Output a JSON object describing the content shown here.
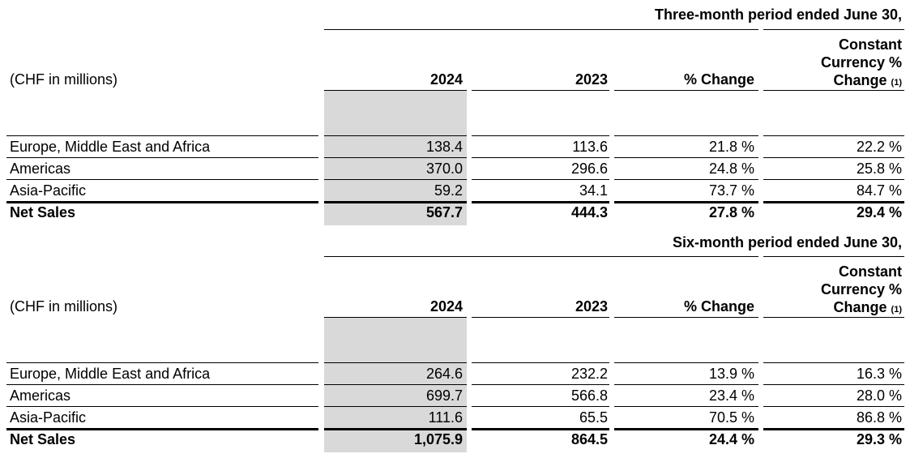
{
  "sections": [
    {
      "period": "Three-month period ended June 30,",
      "header": {
        "label": "(CHF in millions)",
        "col_2024": "2024",
        "col_2023": "2023",
        "col_change": "% Change",
        "col_ccy_line1": "Constant",
        "col_ccy_line2": "Currency %",
        "col_ccy_line3": "Change",
        "col_ccy_note": "(1)"
      },
      "rows": [
        {
          "label": "Europe, Middle East and Africa",
          "v2024": "138.4",
          "v2023": "113.6",
          "change": "21.8 %",
          "ccy": "22.2 %"
        },
        {
          "label": "Americas",
          "v2024": "370.0",
          "v2023": "296.6",
          "change": "24.8 %",
          "ccy": "25.8 %"
        },
        {
          "label": "Asia-Pacific",
          "v2024": "59.2",
          "v2023": "34.1",
          "change": "73.7 %",
          "ccy": "84.7 %"
        }
      ],
      "total": {
        "label": "Net Sales",
        "v2024": "567.7",
        "v2023": "444.3",
        "change": "27.8 %",
        "ccy": "29.4 %"
      }
    },
    {
      "period": "Six-month period ended June 30,",
      "header": {
        "label": "(CHF in millions)",
        "col_2024": "2024",
        "col_2023": "2023",
        "col_change": "% Change",
        "col_ccy_line1": "Constant",
        "col_ccy_line2": "Currency %",
        "col_ccy_line3": "Change",
        "col_ccy_note": "(1)"
      },
      "rows": [
        {
          "label": "Europe, Middle East and Africa",
          "v2024": "264.6",
          "v2023": "232.2",
          "change": "13.9 %",
          "ccy": "16.3 %"
        },
        {
          "label": "Americas",
          "v2024": "699.7",
          "v2023": "566.8",
          "change": "23.4 %",
          "ccy": "28.0 %"
        },
        {
          "label": "Asia-Pacific",
          "v2024": "111.6",
          "v2023": "65.5",
          "change": "70.5 %",
          "ccy": "86.8 %"
        }
      ],
      "total": {
        "label": "Net Sales",
        "v2024": "1,075.9",
        "v2023": "864.5",
        "change": "24.4 %",
        "ccy": "29.3 %"
      }
    }
  ]
}
